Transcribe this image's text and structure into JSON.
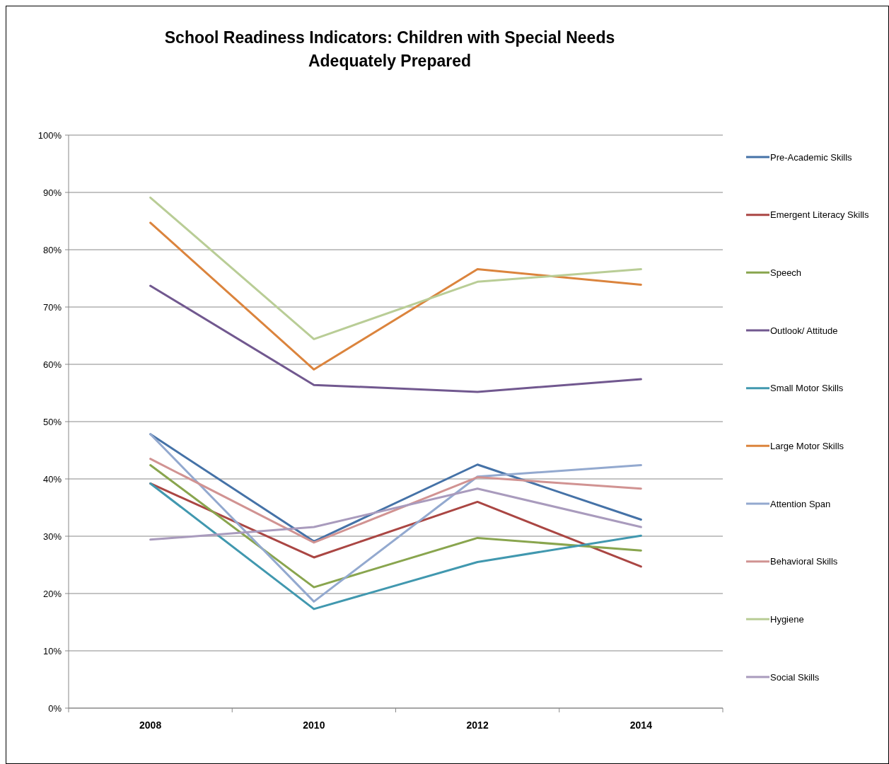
{
  "chart_data": {
    "type": "line",
    "title": "School Readiness Indicators: Children with Special Needs Adequately Prepared",
    "categories": [
      "2008",
      "2010",
      "2012",
      "2014"
    ],
    "series": [
      {
        "name": "Pre-Academic Skills",
        "color": "#4572a7",
        "values": [
          47.8,
          29.1,
          42.5,
          32.9
        ]
      },
      {
        "name": "Emergent Literacy Skills",
        "color": "#aa4643",
        "values": [
          39.2,
          26.3,
          36.0,
          24.7
        ]
      },
      {
        "name": "Speech",
        "color": "#89a54e",
        "values": [
          42.4,
          21.1,
          29.7,
          27.5
        ]
      },
      {
        "name": "Outlook/  Attitude",
        "color": "#71588f",
        "values": [
          73.7,
          56.4,
          55.2,
          57.4
        ]
      },
      {
        "name": "Small Motor Skills",
        "color": "#4198af",
        "values": [
          39.2,
          17.3,
          25.5,
          30.1
        ]
      },
      {
        "name": "Large Motor Skills",
        "color": "#db843d",
        "values": [
          84.7,
          59.1,
          76.6,
          73.9
        ]
      },
      {
        "name": "Attention Span",
        "color": "#93a9cf",
        "values": [
          47.8,
          18.6,
          40.4,
          42.4
        ]
      },
      {
        "name": "Behavioral Skills",
        "color": "#d19392",
        "values": [
          43.5,
          28.9,
          40.3,
          38.3
        ]
      },
      {
        "name": "Hygiene",
        "color": "#b9cd96",
        "values": [
          89.1,
          64.4,
          74.4,
          76.6
        ]
      },
      {
        "name": "Social Skills",
        "color": "#a99bbd",
        "values": [
          29.4,
          31.6,
          38.3,
          31.6
        ]
      }
    ],
    "ylim": [
      0,
      100
    ],
    "yticks": [
      {
        "value": 0,
        "label": "0%"
      },
      {
        "value": 10,
        "label": "10%"
      },
      {
        "value": 20,
        "label": "20%"
      },
      {
        "value": 30,
        "label": "30%"
      },
      {
        "value": 40,
        "label": "40%"
      },
      {
        "value": 50,
        "label": "50%"
      },
      {
        "value": 60,
        "label": "60%"
      },
      {
        "value": 70,
        "label": "70%"
      },
      {
        "value": 80,
        "label": "80%"
      },
      {
        "value": 90,
        "label": "90%"
      },
      {
        "value": 100,
        "label": "100%"
      }
    ],
    "grid": "y",
    "legend": "right",
    "marker": "none",
    "line_style": "solid"
  }
}
